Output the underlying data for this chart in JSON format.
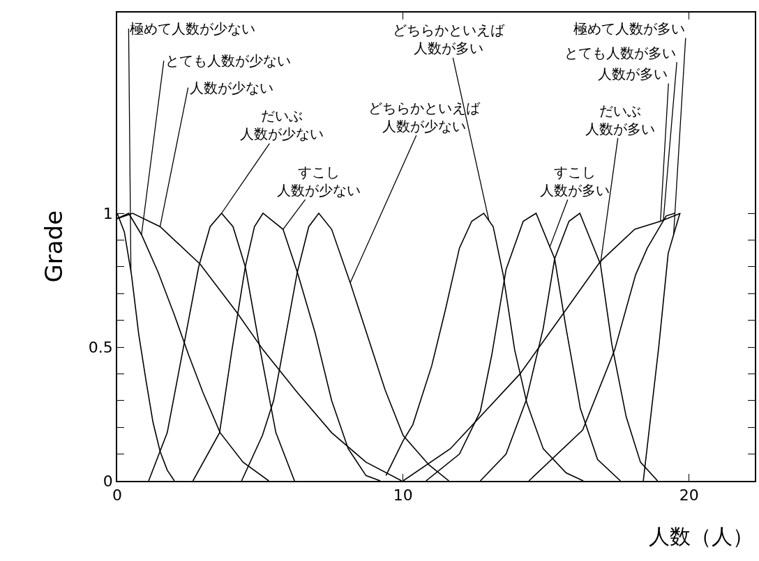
{
  "chart_data": {
    "type": "line",
    "xlabel": "人数（人）",
    "ylabel": "Grade",
    "xlim": [
      0,
      22.3
    ],
    "ylim": [
      0,
      1.75
    ],
    "xticks": [
      0,
      10,
      20
    ],
    "yticks": [
      0,
      {
        "value": 0.1,
        "label": null
      },
      {
        "value": 0.2,
        "label": null
      },
      {
        "value": 0.3,
        "label": null
      },
      {
        "value": 0.4,
        "label": null
      },
      0.5,
      {
        "value": 0.6,
        "label": null
      },
      {
        "value": 0.7,
        "label": null
      },
      {
        "value": 0.8,
        "label": null
      },
      {
        "value": 0.9,
        "label": null
      },
      1
    ],
    "grid": false,
    "marker": "none",
    "line_style": "solid",
    "series": [
      {
        "color": "#000000",
        "x": [
          0,
          0.25,
          0.5,
          0.75,
          1.0,
          1.25,
          1.5,
          1.75,
          2.0
        ],
        "values": [
          1,
          0.93,
          0.77,
          0.55,
          0.38,
          0.22,
          0.11,
          0.04,
          0
        ]
      },
      {
        "color": "#000000",
        "x": [
          0,
          0.4,
          0.85,
          1.43,
          2.0,
          2.5,
          3.0,
          3.6,
          4.4,
          5.3
        ],
        "values": [
          0.98,
          1,
          0.92,
          0.78,
          0.62,
          0.47,
          0.33,
          0.18,
          0.07,
          0
        ]
      },
      {
        "color": "#000000",
        "x": [
          0,
          0.54,
          1.5,
          2.9,
          4.18,
          5.1,
          6.3,
          7.5,
          8.7,
          9.95
        ],
        "values": [
          0.98,
          1,
          0.95,
          0.81,
          0.63,
          0.49,
          0.33,
          0.18,
          0.07,
          0
        ]
      },
      {
        "color": "#000000",
        "x": [
          1.1,
          1.75,
          2.3,
          2.85,
          3.25,
          3.65,
          4.05,
          4.48,
          5.0,
          5.55,
          6.2
        ],
        "values": [
          0,
          0.18,
          0.49,
          0.8,
          0.95,
          1,
          0.95,
          0.8,
          0.49,
          0.18,
          0
        ]
      },
      {
        "color": "#000000",
        "x": [
          2.65,
          3.58,
          4.0,
          4.48,
          4.8,
          5.1,
          5.8,
          6.3,
          6.93,
          7.5,
          8.08,
          8.7,
          9.2
        ],
        "values": [
          0,
          0.18,
          0.48,
          0.8,
          0.95,
          1,
          0.94,
          0.78,
          0.55,
          0.3,
          0.12,
          0.02,
          0
        ]
      },
      {
        "color": "#000000",
        "x": [
          4.35,
          5.08,
          5.47,
          5.7,
          6.3,
          6.7,
          7.05,
          7.5,
          8.15,
          8.73,
          9.37,
          10.0,
          10.9,
          11.6
        ],
        "values": [
          0,
          0.17,
          0.3,
          0.43,
          0.78,
          0.95,
          1,
          0.94,
          0.74,
          0.55,
          0.34,
          0.17,
          0.06,
          0
        ]
      },
      {
        "color": "#000000",
        "x": [
          9.4,
          10.0,
          10.34,
          11.0,
          11.48,
          11.97,
          12.4,
          12.82,
          13.15,
          13.5,
          13.9,
          14.33,
          14.9,
          15.7,
          16.3
        ],
        "values": [
          0.02,
          0.15,
          0.21,
          0.43,
          0.64,
          0.87,
          0.97,
          1,
          0.95,
          0.77,
          0.49,
          0.29,
          0.12,
          0.03,
          0
        ]
      },
      {
        "color": "#000000",
        "x": [
          10.8,
          11.97,
          12.7,
          13.1,
          13.6,
          14.2,
          14.65,
          15.3,
          15.7,
          16.2,
          16.8,
          17.6
        ],
        "values": [
          0,
          0.1,
          0.26,
          0.47,
          0.79,
          0.97,
          1,
          0.83,
          0.57,
          0.27,
          0.08,
          0
        ]
      },
      {
        "color": "#000000",
        "x": [
          12.7,
          13.6,
          14.3,
          14.9,
          15.3,
          15.8,
          16.18,
          16.9,
          17.3,
          17.8,
          18.3,
          18.9
        ],
        "values": [
          0,
          0.1,
          0.3,
          0.57,
          0.83,
          0.97,
          1,
          0.81,
          0.51,
          0.24,
          0.07,
          0
        ]
      },
      {
        "color": "#000000",
        "x": [
          10.0,
          11.65,
          14.09,
          15.7,
          16.9,
          18.1,
          19.0,
          19.7
        ],
        "values": [
          0,
          0.12,
          0.4,
          0.64,
          0.82,
          0.94,
          0.97,
          1
        ]
      },
      {
        "color": "#000000",
        "x": [
          14.4,
          16.28,
          17.4,
          18.13,
          18.54,
          19.2,
          19.5
        ],
        "values": [
          0,
          0.19,
          0.49,
          0.77,
          0.87,
          0.99,
          1
        ]
      },
      {
        "color": "#000000",
        "x": [
          18.4,
          18.95,
          19.27,
          19.46,
          19.68
        ],
        "values": [
          0,
          0.51,
          0.85,
          0.92,
          1
        ]
      }
    ],
    "annotations": [
      {
        "text": "極めて人数が少ない",
        "x": 0.48,
        "y": 0.78
      },
      {
        "text": "とても人数が少ない",
        "x": 0.85,
        "y": 0.92
      },
      {
        "text": "人数が少ない",
        "x": 1.5,
        "y": 0.95
      },
      {
        "text": "だいぶ人数が少ない",
        "x": 3.65,
        "y": 1
      },
      {
        "text": "すこし人数が少ない",
        "x": 5.8,
        "y": 0.94
      },
      {
        "text": "どちらかといえば人数が少ない",
        "x": 8.15,
        "y": 0.74
      },
      {
        "text": "どちらかといえば人数が多い",
        "x": 13.0,
        "y": 0.973
      },
      {
        "text": "すこし人数が多い",
        "x": 15.13,
        "y": 0.874
      },
      {
        "text": "だいぶ人数が多い",
        "x": 16.9,
        "y": 0.81
      },
      {
        "text": "人数が多い",
        "x": 19.0,
        "y": 0.97
      },
      {
        "text": "とても人数が多い",
        "x": 19.1,
        "y": 0.972
      },
      {
        "text": "極めて人数が多い",
        "x": 19.46,
        "y": 0.92
      }
    ]
  }
}
